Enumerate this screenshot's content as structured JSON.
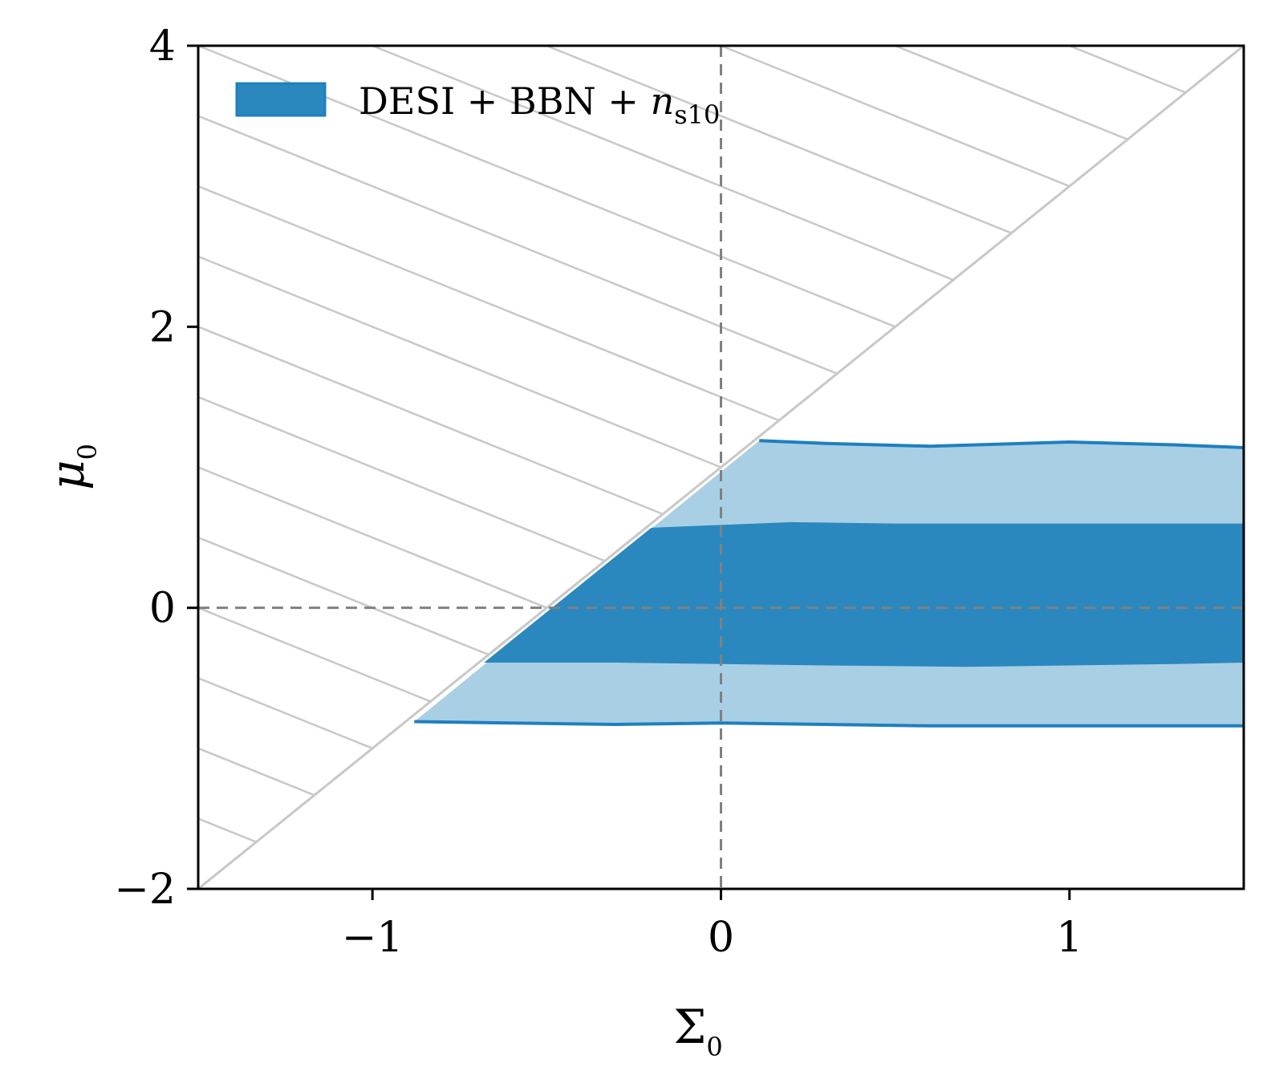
{
  "chart_data": {
    "type": "area",
    "xlabel": "Σ",
    "xlabel_sub": "0",
    "ylabel": "μ",
    "ylabel_sub": "0",
    "xlim": [
      -1.5,
      1.5
    ],
    "ylim": [
      -2,
      4
    ],
    "xticks": [
      -1,
      0,
      1
    ],
    "yticks": [
      -2,
      0,
      2,
      4
    ],
    "xtick_labels": [
      "−1",
      "0",
      "1"
    ],
    "ytick_labels": [
      "−2",
      "0",
      "2",
      "4"
    ],
    "grid": false,
    "legend": {
      "placement": "upper-left",
      "label_main": "DESI + BBN + ",
      "label_var": "n",
      "label_sub": "s10"
    },
    "reference_lines": {
      "x": 0,
      "y": 0,
      "style": "dashed",
      "color": "#808080"
    },
    "excluded_region": {
      "boundary": "μ0 = 2Σ0 + 1",
      "side": "above",
      "hatch": "diagonal",
      "color": "#c8c8c8"
    },
    "series": [
      {
        "level": "95%",
        "color": "#a9cfe4",
        "edge_color": "#1f7fbf",
        "upper": [
          [
            0.11,
            1.19
          ],
          [
            0.3,
            1.17
          ],
          [
            0.6,
            1.15
          ],
          [
            1.0,
            1.18
          ],
          [
            1.3,
            1.16
          ],
          [
            1.5,
            1.14
          ]
        ],
        "lower": [
          [
            -0.88,
            -0.81
          ],
          [
            -0.6,
            -0.82
          ],
          [
            -0.3,
            -0.83
          ],
          [
            0.0,
            -0.82
          ],
          [
            0.3,
            -0.83
          ],
          [
            0.6,
            -0.84
          ],
          [
            1.0,
            -0.84
          ],
          [
            1.3,
            -0.84
          ],
          [
            1.5,
            -0.84
          ]
        ]
      },
      {
        "level": "68%",
        "color": "#2a88bf",
        "upper": [
          [
            -0.2,
            0.57
          ],
          [
            0.0,
            0.59
          ],
          [
            0.2,
            0.61
          ],
          [
            0.5,
            0.6
          ],
          [
            0.8,
            0.6
          ],
          [
            1.1,
            0.6
          ],
          [
            1.5,
            0.6
          ]
        ],
        "lower": [
          [
            -0.68,
            -0.39
          ],
          [
            -0.3,
            -0.39
          ],
          [
            0.0,
            -0.4
          ],
          [
            0.3,
            -0.41
          ],
          [
            0.7,
            -0.42
          ],
          [
            1.0,
            -0.41
          ],
          [
            1.3,
            -0.4
          ],
          [
            1.5,
            -0.39
          ]
        ]
      }
    ]
  }
}
